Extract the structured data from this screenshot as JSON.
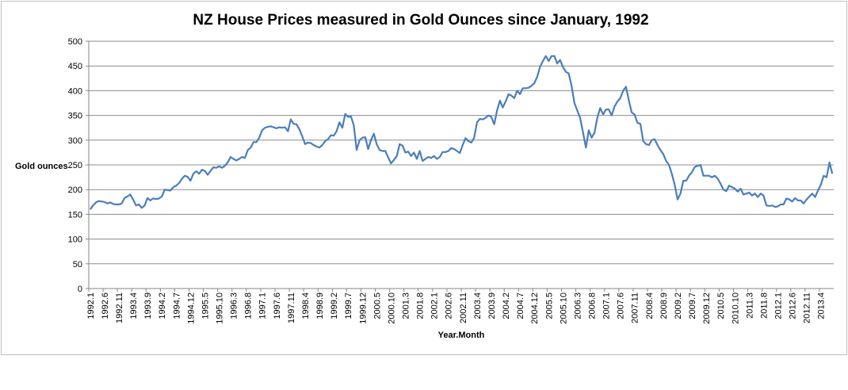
{
  "chart_data": {
    "type": "line",
    "title": "NZ House Prices measured in Gold Ounces since January, 1992",
    "xlabel": "Year.Month",
    "ylabel": "Gold ounces",
    "ylim": [
      0,
      500
    ],
    "y_ticks": [
      0,
      50,
      100,
      150,
      200,
      250,
      300,
      350,
      400,
      450,
      500
    ],
    "grid": true,
    "legend": "none",
    "x_start": "1992.1",
    "x_end": "2013.8",
    "x_tick_every": 5,
    "x_tick_labels": [
      "1992.1",
      "1992.6",
      "1992.11",
      "1993.4",
      "1993.9",
      "1994.2",
      "1994.7",
      "1994.12",
      "1995.5",
      "1995.10",
      "1996.3",
      "1996.8",
      "1997.1",
      "1997.6",
      "1997.11",
      "1998.4",
      "1998.9",
      "1999.2",
      "1999.7",
      "1999.12",
      "2000.5",
      "2000.10",
      "2001.3",
      "2001.8",
      "2002.1",
      "2002.6",
      "2002.11",
      "2003.4",
      "2003.9",
      "2004.2",
      "2004.7",
      "2004.12",
      "2005.5",
      "2005.10",
      "2006.3",
      "2006.8",
      "2007.1",
      "2007.6",
      "2007.11",
      "2008.4",
      "2008.9",
      "2009.2",
      "2009.7",
      "2009.12",
      "2010.5",
      "2010.10",
      "2011.3",
      "2011.8",
      "2012.1",
      "2012.6",
      "2012.11",
      "2013.4"
    ],
    "series": [
      {
        "name": "Gold ounces",
        "color": "#4A7EBB",
        "values": [
          160,
          168,
          174,
          177,
          176,
          175,
          172,
          174,
          171,
          170,
          170,
          172,
          183,
          186,
          190,
          180,
          168,
          170,
          163,
          168,
          183,
          178,
          182,
          181,
          182,
          186,
          200,
          199,
          198,
          205,
          208,
          213,
          222,
          228,
          226,
          218,
          232,
          237,
          232,
          240,
          238,
          230,
          238,
          245,
          244,
          247,
          244,
          248,
          255,
          266,
          262,
          259,
          262,
          266,
          264,
          280,
          285,
          296,
          296,
          305,
          320,
          325,
          327,
          328,
          326,
          324,
          326,
          325,
          326,
          318,
          342,
          333,
          332,
          322,
          308,
          292,
          295,
          294,
          290,
          287,
          285,
          290,
          298,
          302,
          310,
          309,
          318,
          336,
          325,
          353,
          347,
          348,
          330,
          280,
          300,
          305,
          306,
          282,
          300,
          313,
          292,
          280,
          278,
          278,
          265,
          253,
          260,
          268,
          292,
          289,
          275,
          277,
          268,
          275,
          262,
          278,
          258,
          262,
          266,
          264,
          268,
          262,
          266,
          276,
          276,
          278,
          284,
          282,
          278,
          274,
          290,
          304,
          298,
          295,
          305,
          336,
          343,
          342,
          345,
          350,
          347,
          332,
          360,
          380,
          366,
          378,
          393,
          390,
          385,
          400,
          393,
          405,
          405,
          406,
          410,
          415,
          428,
          448,
          460,
          470,
          460,
          470,
          470,
          455,
          462,
          448,
          438,
          435,
          410,
          375,
          360,
          345,
          315,
          285,
          320,
          305,
          315,
          345,
          365,
          352,
          362,
          362,
          350,
          368,
          378,
          385,
          400,
          408,
          380,
          356,
          352,
          335,
          333,
          298,
          292,
          290,
          300,
          302,
          290,
          280,
          272,
          258,
          250,
          232,
          210,
          180,
          192,
          218,
          218,
          228,
          235,
          246,
          248,
          250,
          228,
          228,
          228,
          225,
          228,
          222,
          212,
          200,
          197,
          208,
          205,
          202,
          196,
          202,
          190,
          192,
          194,
          188,
          192,
          185,
          192,
          188,
          168,
          167,
          168,
          165,
          166,
          170,
          170,
          182,
          180,
          176,
          183,
          178,
          178,
          172,
          180,
          186,
          192,
          185,
          198,
          210,
          228,
          225,
          255,
          232
        ]
      }
    ]
  }
}
